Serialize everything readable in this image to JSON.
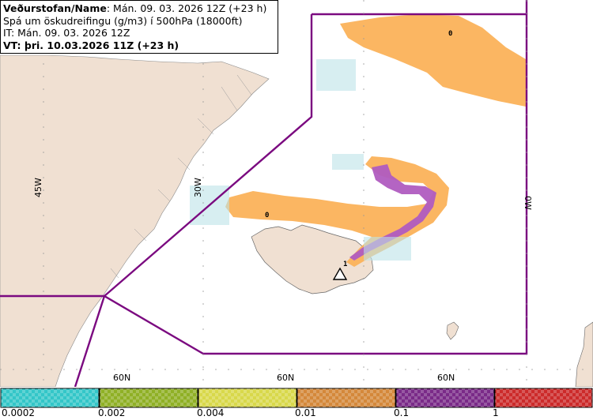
{
  "header": {
    "line1_bold": "Veðurstofan/Name",
    "line1_rest": ": Mán. 09. 03. 2026 12Z (+23 h)",
    "line2": "Spá um öskudreifingu (g/m3) í 500hPa (18000ft)",
    "line3": "IT: Mán. 09. 03. 2026 12Z",
    "line4": "VT: þri. 10.03.2026 11Z (+23 h)"
  },
  "map": {
    "lon_labels": [
      "45W",
      "30W",
      "0W"
    ],
    "lat_labels": [
      "60N",
      "60N",
      "60N"
    ],
    "contour_labels": [
      "0",
      "0",
      "1"
    ],
    "volcano_icon": "triangle-volcano-icon"
  },
  "colorbar": {
    "ticks": [
      "0.0002",
      "0.002",
      "0.004",
      "0.01",
      "0.1",
      "1"
    ],
    "colors": [
      "#33c6c8",
      "#8fb025",
      "#d8d84a",
      "#d4883a",
      "#7a2a88",
      "#cc2a2a"
    ]
  },
  "colors": {
    "land": "#f0e0d2",
    "fir_boundary": "#7b0a80",
    "ash_low": "#fbb25a",
    "ash_high": "#b05cc0",
    "ocean": "#ffffff"
  }
}
